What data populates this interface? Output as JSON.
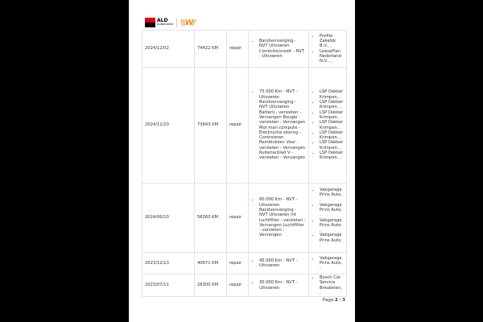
{
  "header": {
    "logo_text": "ALD",
    "logo_sub": "Automotive",
    "partner_logo": "LeasePlan"
  },
  "rows": [
    {
      "date": "2024/12/02",
      "km": "74422 KM",
      "type": "repair",
      "items": [
        "Bandvervanging - NVT Uitvoeren Correctie/credit - NVT - Uitvoeren"
      ],
      "workshops": [
        "Profile Zakelijk B.V., ,",
        "LeasePlan Nederland N.V., ,"
      ]
    },
    {
      "date": "2024/11/20",
      "km": "73643 KM",
      "type": "repair",
      "items": [
        "75.000 Km - NVT - Uitvoeren Bandvervanging - NVT Uitvoeren Batterij - versleten - Vervangen Bougie - versleten - Vervangen Mot man compute - Electrische storing - Controleren Remblokken Voor - versleten - Vervangen Ruitenw.blad V - versleten - Vervangen"
      ],
      "workshops": [
        "LSP Dekker Krimpen, ,",
        "LSP Dekker Krimpen, ,",
        "LSP Dekker Krimpen, ,",
        "LSP Dekker Krimpen, ,",
        "LSP Dekker Krimpen, ,",
        "LSP Dekker Krimpen, ,",
        "LSP Dekker Krimpen, ,"
      ]
    },
    {
      "date": "2024/06/10",
      "km": "58260 KM",
      "type": "repair",
      "items": [
        "60.000 Km - NVT - Uitvoeren Bandvervanging - NVT Uitvoeren Int luchtfilter - versleten - Vervangen Luchtfilter - versleten - Vervangen"
      ],
      "workshops": [
        "Vakgarage Prins Auto, ,",
        "Vakgarage Prins Auto, ,",
        "Vakgarage Prins Auto, ,",
        "Vakgarage Prins Auto, ,"
      ]
    },
    {
      "date": "2023/12/13",
      "km": "40671 KM",
      "type": "repair",
      "items": [
        "45.000 Km - NVT - Uitvoeren"
      ],
      "workshops": [
        "Vakgarage Prins Auto, ,"
      ]
    },
    {
      "date": "2023/07/11",
      "km": "26300 KM",
      "type": "repair",
      "items": [
        "30.000 Km - NVT - Uitvoeren"
      ],
      "workshops": [
        "Bosch Car Service Breukelen, ,"
      ]
    }
  ],
  "footer": {
    "page_label": "Page",
    "page": "2",
    "separator": "/",
    "total": "3"
  }
}
